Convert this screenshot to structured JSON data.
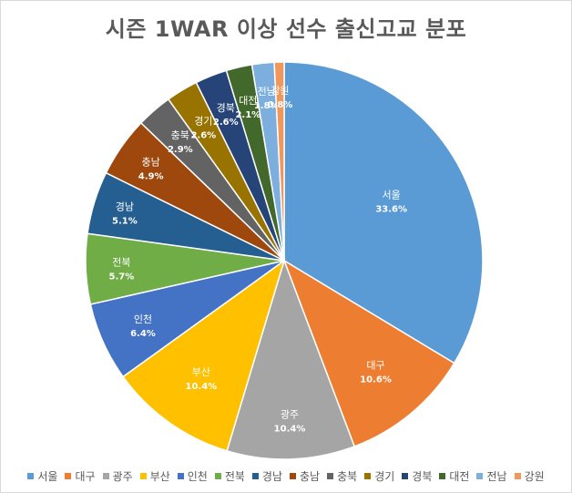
{
  "chart_data": {
    "type": "pie",
    "title": "시즌 1WAR 이상 선수 출신고교 분포",
    "legend_position": "bottom",
    "slices": [
      {
        "label": "서울",
        "value": 33.6,
        "value_label": "33.6%",
        "color": "#5b9bd5"
      },
      {
        "label": "대구",
        "value": 10.6,
        "value_label": "10.6%",
        "color": "#ed7d31"
      },
      {
        "label": "광주",
        "value": 10.4,
        "value_label": "10.4%",
        "color": "#a5a5a5"
      },
      {
        "label": "부산",
        "value": 10.4,
        "value_label": "10.4%",
        "color": "#ffc000"
      },
      {
        "label": "인천",
        "value": 6.4,
        "value_label": "6.4%",
        "color": "#4472c4"
      },
      {
        "label": "전북",
        "value": 5.7,
        "value_label": "5.7%",
        "color": "#70ad47"
      },
      {
        "label": "경남",
        "value": 5.1,
        "value_label": "5.1%",
        "color": "#255e91"
      },
      {
        "label": "충남",
        "value": 4.9,
        "value_label": "4.9%",
        "color": "#9e480e"
      },
      {
        "label": "충북",
        "value": 2.9,
        "value_label": "2.9%",
        "color": "#636363"
      },
      {
        "label": "경기",
        "value": 2.6,
        "value_label": "2.6%",
        "color": "#997300"
      },
      {
        "label": "경북",
        "value": 2.6,
        "value_label": "2.6%",
        "color": "#264478"
      },
      {
        "label": "대전",
        "value": 2.1,
        "value_label": "2.1%",
        "color": "#43682b"
      },
      {
        "label": "전남",
        "value": 1.8,
        "value_label": "1.8%",
        "color": "#7cafdd"
      },
      {
        "label": "강원",
        "value": 0.8,
        "value_label": "0.8%",
        "color": "#f1975a"
      }
    ]
  }
}
